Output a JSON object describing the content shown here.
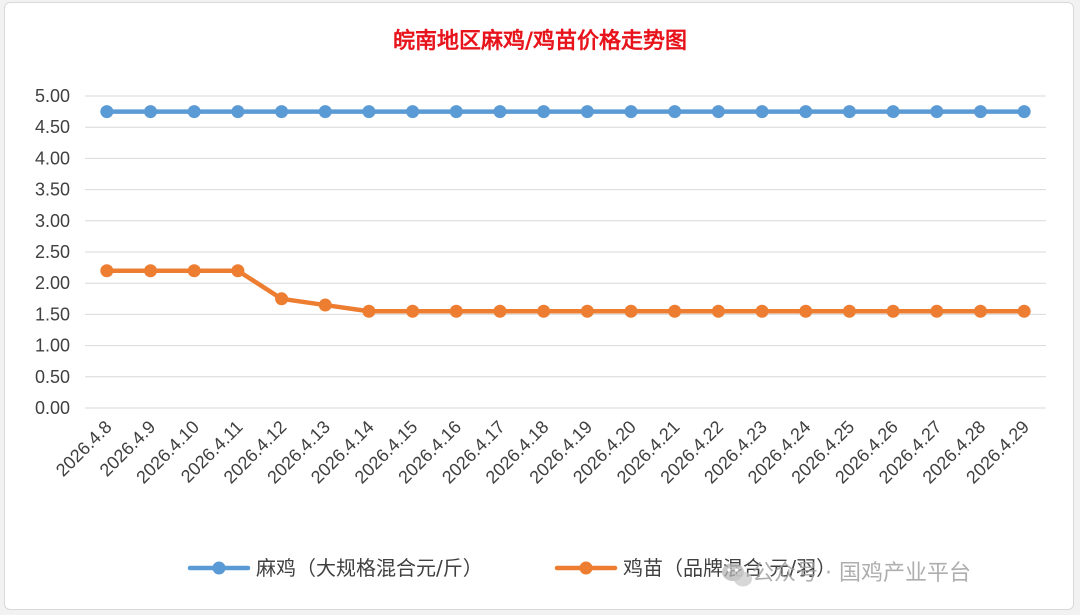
{
  "chart_data": {
    "type": "line",
    "title": "皖南地区麻鸡/鸡苗价格走势图",
    "xlabel": "",
    "ylabel": "",
    "categories": [
      "2026.4.8",
      "2026.4.9",
      "2026.4.10",
      "2026.4.11",
      "2026.4.12",
      "2026.4.13",
      "2026.4.14",
      "2026.4.15",
      "2026.4.16",
      "2026.4.17",
      "2026.4.18",
      "2026.4.19",
      "2026.4.20",
      "2026.4.21",
      "2026.4.22",
      "2026.4.23",
      "2026.4.24",
      "2026.4.25",
      "2026.4.26",
      "2026.4.27",
      "2026.4.28",
      "2026.4.29"
    ],
    "y_ticks": [
      "0.00",
      "0.50",
      "1.00",
      "1.50",
      "2.00",
      "2.50",
      "3.00",
      "3.50",
      "4.00",
      "4.50",
      "5.00"
    ],
    "ylim": [
      0,
      5
    ],
    "grid": true,
    "legend_position": "bottom",
    "series": [
      {
        "name": "麻鸡（大规格混合元/斤）",
        "color": "#5b9bd5",
        "values": [
          4.75,
          4.75,
          4.75,
          4.75,
          4.75,
          4.75,
          4.75,
          4.75,
          4.75,
          4.75,
          4.75,
          4.75,
          4.75,
          4.75,
          4.75,
          4.75,
          4.75,
          4.75,
          4.75,
          4.75,
          4.75,
          4.75
        ]
      },
      {
        "name": "鸡苗（品牌混合 元/羽）",
        "color": "#ed7d31",
        "values": [
          2.2,
          2.2,
          2.2,
          2.2,
          1.75,
          1.65,
          1.55,
          1.55,
          1.55,
          1.55,
          1.55,
          1.55,
          1.55,
          1.55,
          1.55,
          1.55,
          1.55,
          1.55,
          1.55,
          1.55,
          1.55,
          1.55
        ]
      }
    ]
  },
  "watermark": {
    "text": "公众号 · 国鸡产业平台",
    "icon": "wechat-icon"
  }
}
